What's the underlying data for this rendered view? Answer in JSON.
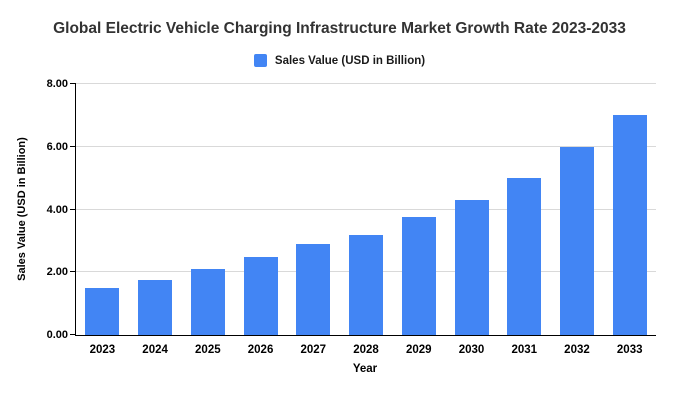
{
  "title": "Global Electric Vehicle Charging Infrastructure Market Growth Rate 2023-2033",
  "legend": {
    "label": "Sales Value (USD in Billion)"
  },
  "chart_data": {
    "type": "bar",
    "title": "Global Electric Vehicle Charging Infrastructure Market Growth Rate 2023-2033",
    "categories": [
      "2023",
      "2024",
      "2025",
      "2026",
      "2027",
      "2028",
      "2029",
      "2030",
      "2031",
      "2032",
      "2033"
    ],
    "values": [
      1.5,
      1.75,
      2.1,
      2.5,
      2.9,
      3.2,
      3.75,
      4.3,
      5.0,
      6.0,
      7.0
    ],
    "series_name": "Sales Value (USD in Billion)",
    "xlabel": "Year",
    "ylabel": "Sales Value (USD in Billion)",
    "ylim": [
      0,
      8
    ],
    "yticks": [
      0,
      2,
      4,
      6,
      8
    ],
    "ytick_labels": [
      "0.00",
      "2.00",
      "4.00",
      "6.00",
      "8.00"
    ],
    "bar_color": "#4285f4",
    "grid": true,
    "legend_position": "top"
  },
  "colors": {
    "bar": "#4285f4",
    "gridline": "#d9d9d9",
    "axis": "#000000",
    "title": "#333333"
  }
}
